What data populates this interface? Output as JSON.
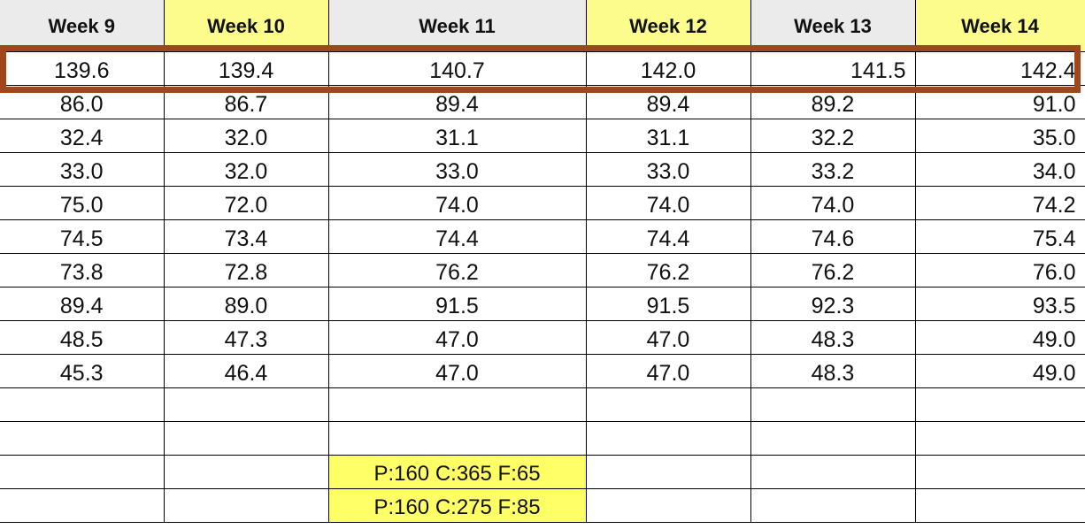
{
  "header": {
    "weeks": [
      "Week 9",
      "Week 10",
      "Week 11",
      "Week 12",
      "Week 13",
      "Week 14"
    ]
  },
  "rows": [
    [
      "139.6",
      "139.4",
      "140.7",
      "142.0",
      "141.5",
      "142.4"
    ],
    [
      "86.0",
      "86.7",
      "89.4",
      "89.4",
      "89.2",
      "91.0"
    ],
    [
      "32.4",
      "32.0",
      "31.1",
      "31.1",
      "32.2",
      "35.0"
    ],
    [
      "33.0",
      "32.0",
      "33.0",
      "33.0",
      "33.2",
      "34.0"
    ],
    [
      "75.0",
      "72.0",
      "74.0",
      "74.0",
      "74.0",
      "74.2"
    ],
    [
      "74.5",
      "73.4",
      "74.4",
      "74.4",
      "74.6",
      "75.4"
    ],
    [
      "73.8",
      "72.8",
      "76.2",
      "76.2",
      "76.2",
      "76.0"
    ],
    [
      "89.4",
      "89.0",
      "91.5",
      "91.5",
      "92.3",
      "93.5"
    ],
    [
      "48.5",
      "47.3",
      "47.0",
      "47.0",
      "48.3",
      "49.0"
    ],
    [
      "45.3",
      "46.4",
      "47.0",
      "47.0",
      "48.3",
      "49.0"
    ]
  ],
  "notes": [
    "P:160 C:365 F:65",
    "P:160 C:275 F:85"
  ],
  "colors": {
    "header_plain": "#ebebeb",
    "header_highlight": "#fcfc8c",
    "note_highlight": "#ffff66",
    "selection_border": "#a0461c"
  }
}
